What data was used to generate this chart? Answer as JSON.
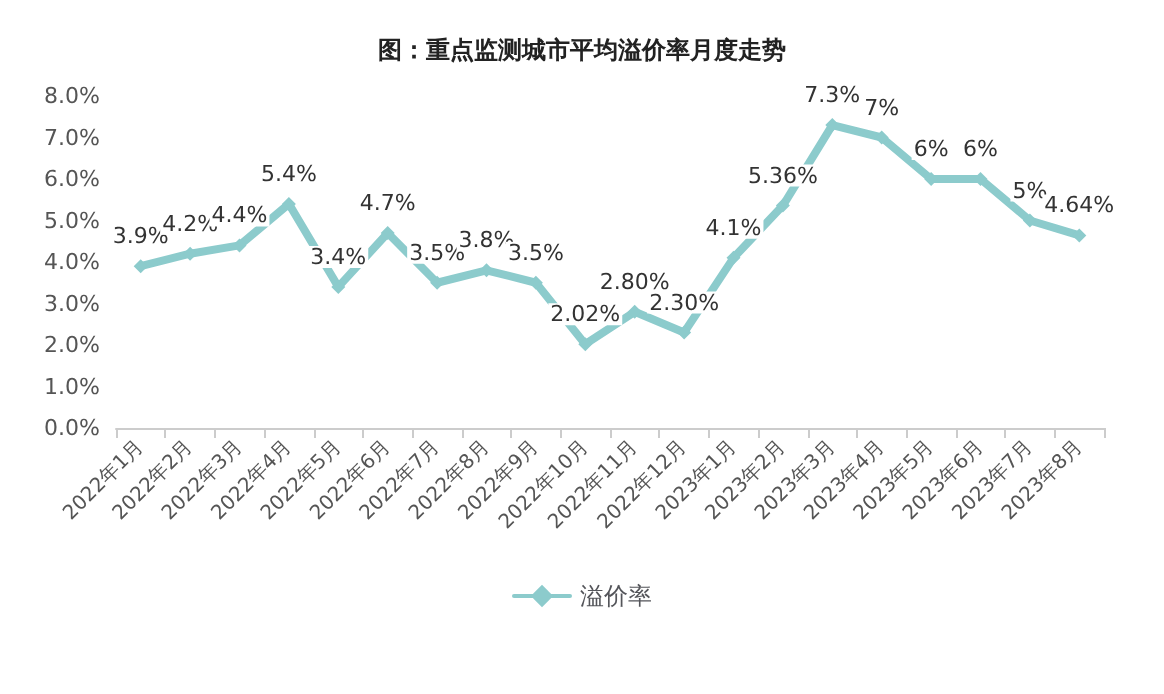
{
  "chart_data": {
    "type": "line",
    "title": "图：重点监测城市平均溢价率月度走势",
    "categories": [
      "2022年1月",
      "2022年2月",
      "2022年3月",
      "2022年4月",
      "2022年5月",
      "2022年6月",
      "2022年7月",
      "2022年8月",
      "2022年9月",
      "2022年10月",
      "2022年11月",
      "2022年12月",
      "2023年1月",
      "2023年2月",
      "2023年3月",
      "2023年4月",
      "2023年5月",
      "2023年6月",
      "2023年7月",
      "2023年8月"
    ],
    "series": [
      {
        "name": "溢价率",
        "color": "#8ccbcc",
        "values": [
          3.9,
          4.2,
          4.4,
          5.4,
          3.4,
          4.7,
          3.5,
          3.8,
          3.5,
          2.02,
          2.8,
          2.3,
          4.1,
          5.36,
          7.3,
          7,
          6,
          6,
          5,
          4.64
        ],
        "value_labels": [
          "3.9%",
          "4.2%",
          "4.4%",
          "5.4%",
          "3.4%",
          "4.7%",
          "3.5%",
          "3.8%",
          "3.5%",
          "2.02%",
          "2.80%",
          "2.30%",
          "4.1%",
          "5.36%",
          "7.3%",
          "7%",
          "6%",
          "6%",
          "5%",
          "4.64%"
        ]
      }
    ],
    "ylim": [
      0,
      8
    ],
    "yticks": [
      {
        "value": 0,
        "label": "0.0%"
      },
      {
        "value": 1,
        "label": "1.0%"
      },
      {
        "value": 2,
        "label": "2.0%"
      },
      {
        "value": 3,
        "label": "3.0%"
      },
      {
        "value": 4,
        "label": "4.0%"
      },
      {
        "value": 5,
        "label": "5.0%"
      },
      {
        "value": 6,
        "label": "6.0%"
      },
      {
        "value": 7,
        "label": "7.0%"
      },
      {
        "value": 8,
        "label": "8.0%"
      }
    ],
    "grid": false,
    "legend": "bottom",
    "marker": "diamond"
  }
}
